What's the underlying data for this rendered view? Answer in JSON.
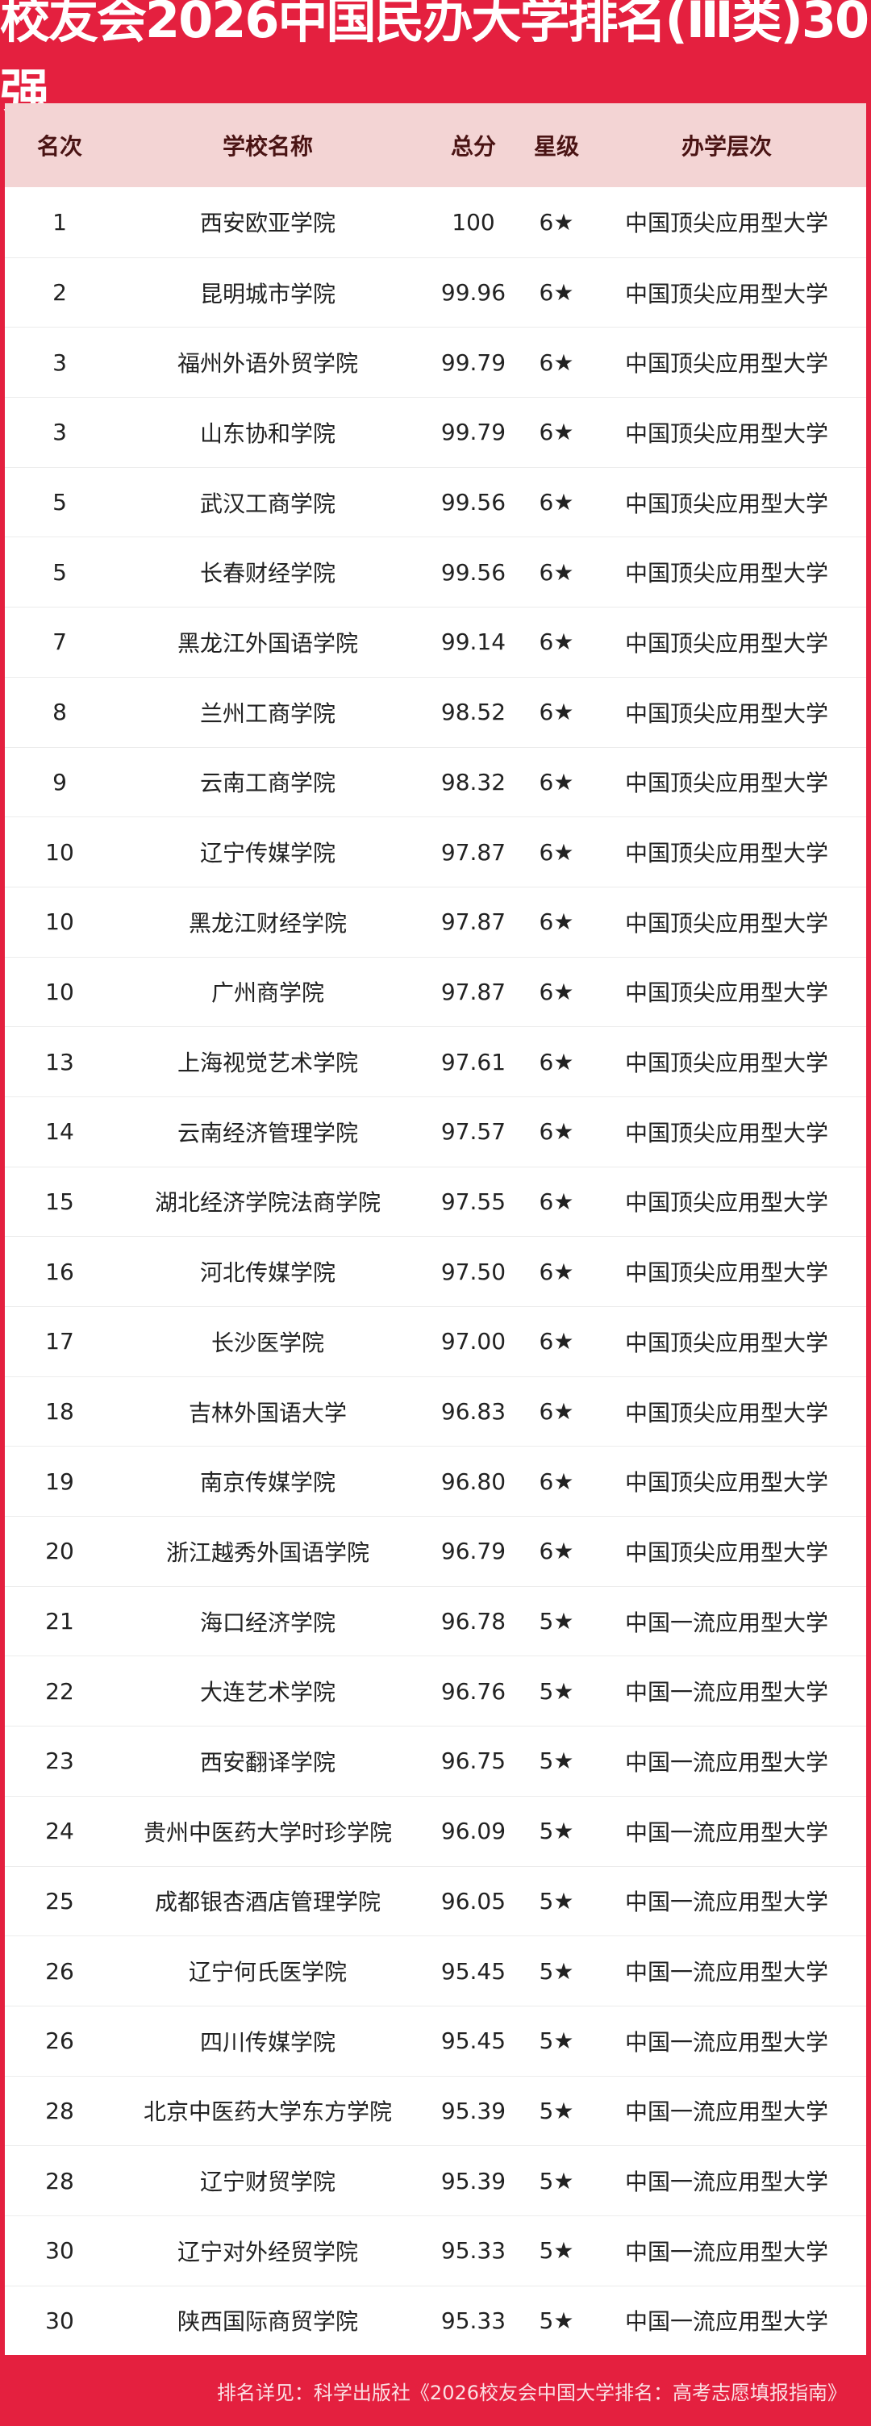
{
  "title": "校友会2026中国民办大学排名(Ⅲ类)30强",
  "headers": [
    "名次",
    "学校名称",
    "总分",
    "星级",
    "办学层次"
  ],
  "rows": [
    [
      "1",
      "西安欧亚学院",
      "100",
      "6★",
      "中国顶尖应用型大学"
    ],
    [
      "2",
      "昆明城市学院",
      "99.96",
      "6★",
      "中国顶尖应用型大学"
    ],
    [
      "3",
      "福州外语外贸学院",
      "99.79",
      "6★",
      "中国顶尖应用型大学"
    ],
    [
      "3",
      "山东协和学院",
      "99.79",
      "6★",
      "中国顶尖应用型大学"
    ],
    [
      "5",
      "武汉工商学院",
      "99.56",
      "6★",
      "中国顶尖应用型大学"
    ],
    [
      "5",
      "长春财经学院",
      "99.56",
      "6★",
      "中国顶尖应用型大学"
    ],
    [
      "7",
      "黑龙江外国语学院",
      "99.14",
      "6★",
      "中国顶尖应用型大学"
    ],
    [
      "8",
      "兰州工商学院",
      "98.52",
      "6★",
      "中国顶尖应用型大学"
    ],
    [
      "9",
      "云南工商学院",
      "98.32",
      "6★",
      "中国顶尖应用型大学"
    ],
    [
      "10",
      "辽宁传媒学院",
      "97.87",
      "6★",
      "中国顶尖应用型大学"
    ],
    [
      "10",
      "黑龙江财经学院",
      "97.87",
      "6★",
      "中国顶尖应用型大学"
    ],
    [
      "10",
      "广州商学院",
      "97.87",
      "6★",
      "中国顶尖应用型大学"
    ],
    [
      "13",
      "上海视觉艺术学院",
      "97.61",
      "6★",
      "中国顶尖应用型大学"
    ],
    [
      "14",
      "云南经济管理学院",
      "97.57",
      "6★",
      "中国顶尖应用型大学"
    ],
    [
      "15",
      "湖北经济学院法商学院",
      "97.55",
      "6★",
      "中国顶尖应用型大学"
    ],
    [
      "16",
      "河北传媒学院",
      "97.50",
      "6★",
      "中国顶尖应用型大学"
    ],
    [
      "17",
      "长沙医学院",
      "97.00",
      "6★",
      "中国顶尖应用型大学"
    ],
    [
      "18",
      "吉林外国语大学",
      "96.83",
      "6★",
      "中国顶尖应用型大学"
    ],
    [
      "19",
      "南京传媒学院",
      "96.80",
      "6★",
      "中国顶尖应用型大学"
    ],
    [
      "20",
      "浙江越秀外国语学院",
      "96.79",
      "6★",
      "中国顶尖应用型大学"
    ],
    [
      "21",
      "海口经济学院",
      "96.78",
      "5★",
      "中国一流应用型大学"
    ],
    [
      "22",
      "大连艺术学院",
      "96.76",
      "5★",
      "中国一流应用型大学"
    ],
    [
      "23",
      "西安翻译学院",
      "96.75",
      "5★",
      "中国一流应用型大学"
    ],
    [
      "24",
      "贵州中医药大学时珍学院",
      "96.09",
      "5★",
      "中国一流应用型大学"
    ],
    [
      "25",
      "成都银杏酒店管理学院",
      "96.05",
      "5★",
      "中国一流应用型大学"
    ],
    [
      "26",
      "辽宁何氏医学院",
      "95.45",
      "5★",
      "中国一流应用型大学"
    ],
    [
      "26",
      "四川传媒学院",
      "95.45",
      "5★",
      "中国一流应用型大学"
    ],
    [
      "28",
      "北京中医药大学东方学院",
      "95.39",
      "5★",
      "中国一流应用型大学"
    ],
    [
      "28",
      "辽宁财贸学院",
      "95.39",
      "5★",
      "中国一流应用型大学"
    ],
    [
      "30",
      "辽宁对外经贸学院",
      "95.33",
      "5★",
      "中国一流应用型大学"
    ],
    [
      "30",
      "陕西国际商贸学院",
      "95.33",
      "5★",
      "中国一流应用型大学"
    ]
  ],
  "footer": "排名详见：科学出版社《2026校友会中国大学排名：高考志愿填报指南》",
  "colors": {
    "brand_red": "#e4203f",
    "header_bg": "#f3d4d4"
  }
}
